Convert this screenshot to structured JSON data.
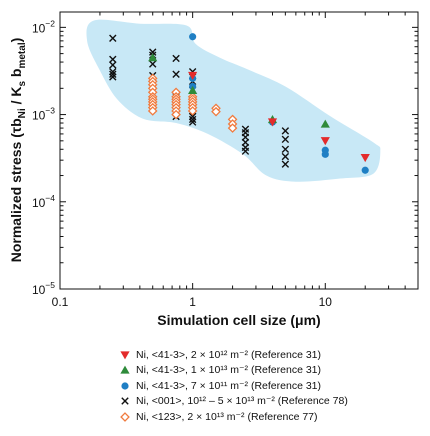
{
  "chart_data": {
    "type": "scatter",
    "xlabel": "Simulation cell size  (μm)",
    "ylabel_parts": [
      "Normalized stress (τb",
      "Ni",
      " / K",
      "s",
      " b",
      "metal",
      ")"
    ],
    "x_scale": "log",
    "y_scale": "log",
    "xlim": [
      0.1,
      50
    ],
    "ylim": [
      1e-05,
      0.015
    ],
    "x_ticks": [
      {
        "value": 0.1,
        "label": "0.1"
      },
      {
        "value": 1,
        "label": "1"
      },
      {
        "value": 10,
        "label": "10"
      }
    ],
    "y_ticks": [
      {
        "value": 0.01,
        "base": "10",
        "exp": "−2"
      },
      {
        "value": 0.001,
        "base": "10",
        "exp": "−3"
      },
      {
        "value": 0.0001,
        "base": "10",
        "exp": "−4"
      },
      {
        "value": 1e-05,
        "base": "10",
        "exp": "−5"
      }
    ],
    "grid": false,
    "band_color": "#c8e8f6",
    "band": [
      [
        0.18,
        0.012
      ],
      [
        0.4,
        0.011
      ],
      [
        0.9,
        0.0105
      ],
      [
        1.05,
        0.0065
      ],
      [
        1.6,
        0.0045
      ],
      [
        2.6,
        0.0033
      ],
      [
        5,
        0.0021
      ],
      [
        11,
        0.00095
      ],
      [
        23,
        0.00048
      ],
      [
        26,
        0.00038
      ],
      [
        23,
        0.00021
      ],
      [
        13,
        0.000185
      ],
      [
        6,
        0.00017
      ],
      [
        3.6,
        0.0002
      ],
      [
        2.4,
        0.00035
      ],
      [
        1.3,
        0.0006
      ],
      [
        0.75,
        0.0008
      ],
      [
        0.42,
        0.0009
      ],
      [
        0.27,
        0.0015
      ],
      [
        0.2,
        0.0032
      ],
      [
        0.16,
        0.007
      ]
    ],
    "series": [
      {
        "label": "Ni, <41-3>, 2 × 10¹² m⁻² (Reference 31)",
        "marker": "triangle-down",
        "color": "#e32b2b",
        "x": [
          1,
          4,
          10,
          20
        ],
        "y": [
          0.0028,
          0.00082,
          0.0005,
          0.00032
        ]
      },
      {
        "label": "Ni, <41-3>, 1 × 10¹³ m⁻² (Reference 31)",
        "marker": "triangle-up",
        "color": "#2e8b3a",
        "x": [
          0.5,
          1,
          4,
          10
        ],
        "y": [
          0.0045,
          0.0019,
          0.00088,
          0.00078
        ]
      },
      {
        "label": "Ni, <41-3>, 7 × 10¹¹ m⁻² (Reference 31)",
        "marker": "circle",
        "color": "#1f7fc4",
        "x": [
          1,
          1,
          1,
          4,
          10,
          10,
          20
        ],
        "y": [
          0.0078,
          0.0026,
          0.0021,
          0.00082,
          0.00039,
          0.00035,
          0.00023
        ]
      },
      {
        "label": "Ni, <001>, 10¹² – 5 × 10¹³ m⁻² (Reference 78)",
        "marker": "x",
        "color": "#111111",
        "x": [
          0.25,
          0.25,
          0.25,
          0.25,
          0.25,
          0.25,
          0.5,
          0.5,
          0.5,
          0.5,
          0.5,
          0.5,
          0.75,
          0.75,
          0.75,
          0.75,
          0.75,
          1,
          1,
          1,
          1,
          1,
          1,
          1,
          1,
          1,
          2.5,
          2.5,
          2.5,
          2.5,
          2.5,
          2.5,
          5,
          5,
          5,
          5,
          5
        ],
        "y": [
          0.0075,
          0.0043,
          0.0037,
          0.0031,
          0.0029,
          0.0027,
          0.0052,
          0.0048,
          0.0038,
          0.0028,
          0.0019,
          0.0015,
          0.0044,
          0.0029,
          0.0016,
          0.0012,
          0.00095,
          0.0031,
          0.0024,
          0.0019,
          0.0015,
          0.0013,
          0.0011,
          0.00095,
          0.00088,
          0.00082,
          0.00068,
          0.00062,
          0.00055,
          0.00048,
          0.00042,
          0.00038,
          0.00065,
          0.00052,
          0.0004,
          0.00033,
          0.00027
        ]
      },
      {
        "label": "Ni, <123>, 2 × 10¹³ m⁻² (Reference 77)",
        "marker": "diamond-open",
        "color": "#f07b3f",
        "x": [
          0.5,
          0.5,
          0.5,
          0.5,
          0.5,
          0.5,
          0.5,
          0.5,
          0.5,
          0.5,
          0.5,
          0.75,
          0.75,
          0.75,
          0.75,
          0.75,
          0.75,
          0.75,
          0.75,
          1,
          1,
          1,
          1,
          1,
          1,
          1.5,
          1.5,
          2,
          2,
          2
        ],
        "y": [
          0.0026,
          0.0024,
          0.0022,
          0.002,
          0.0018,
          0.0016,
          0.0015,
          0.0014,
          0.0013,
          0.0012,
          0.0011,
          0.0018,
          0.0016,
          0.0015,
          0.0014,
          0.0013,
          0.0012,
          0.0011,
          0.001,
          0.0016,
          0.0015,
          0.0014,
          0.0013,
          0.0012,
          0.0011,
          0.00118,
          0.00108,
          0.00088,
          0.00078,
          0.0007
        ]
      }
    ],
    "legend_position": "bottom"
  }
}
